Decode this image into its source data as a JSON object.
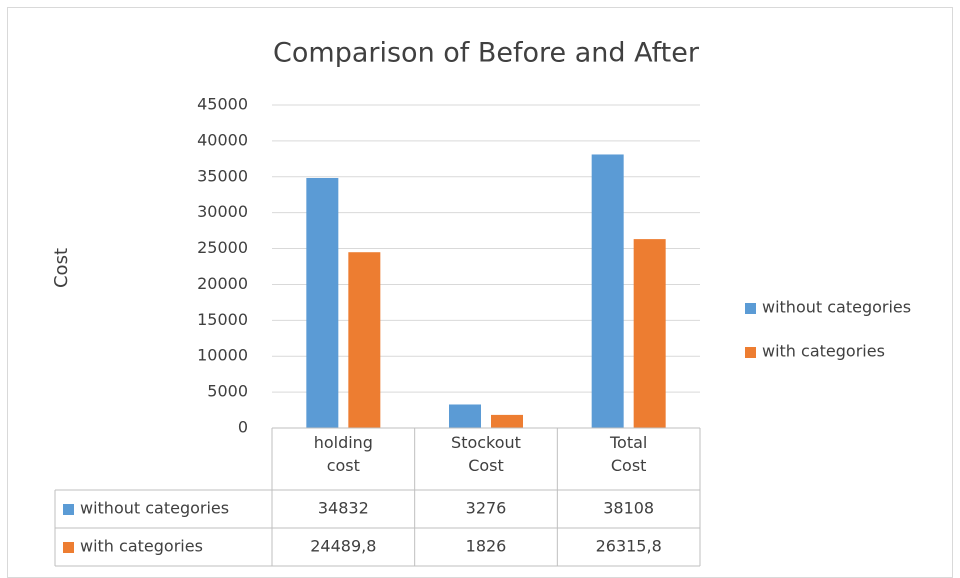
{
  "chart_data": {
    "type": "bar",
    "title": "Comparison of Before and After",
    "y_label": "Cost",
    "categories": [
      "holding cost",
      "Stockout Cost",
      "Total Cost"
    ],
    "series": [
      {
        "name": "without categories",
        "color": "#5b9bd5",
        "values": [
          34832,
          3276,
          38108
        ]
      },
      {
        "name": "with categories",
        "color": "#ed7d31",
        "values": [
          24489.8,
          1826,
          26315.8
        ],
        "value_labels": [
          "24489,8",
          "1826",
          "26315,8"
        ]
      }
    ],
    "ylim": [
      0,
      45000
    ],
    "yticks": [
      0,
      5000,
      10000,
      15000,
      20000,
      25000,
      30000,
      35000,
      40000,
      45000
    ],
    "grid": true,
    "legend": "right",
    "data_table": true
  }
}
